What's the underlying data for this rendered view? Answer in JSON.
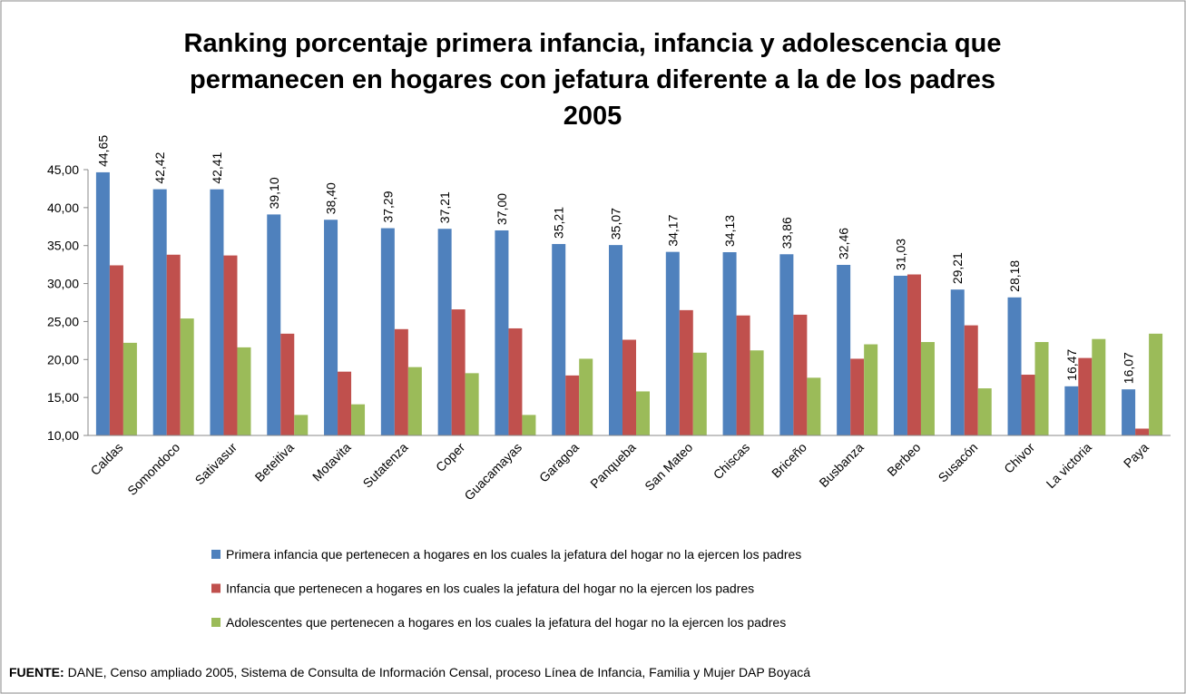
{
  "chart_data": {
    "type": "bar",
    "title_lines": [
      "Ranking  porcentaje primera infancia, infancia y adolescencia  que",
      "permanecen en hogares con jefatura diferente a la de los padres",
      "2005"
    ],
    "categories": [
      "Caldas",
      "Somondoco",
      "Sativasur",
      "Beteitiva",
      "Motavita",
      "Sutatenza",
      "Coper",
      "Guacamayas",
      "Garagoa",
      "Panqueba",
      "San Mateo",
      "Chiscas",
      "Briceño",
      "Busbanza",
      "Berbeo",
      "Susacón",
      "Chivor",
      "La victoria",
      "Paya"
    ],
    "series": [
      {
        "name": "Primera infancia que pertenecen a hogares en los cuales la jefatura del hogar no la ejercen los padres",
        "color": "#4f81bd",
        "values": [
          44.65,
          42.42,
          42.41,
          39.1,
          38.4,
          37.29,
          37.21,
          37.0,
          35.21,
          35.07,
          34.17,
          34.13,
          33.86,
          32.46,
          31.03,
          29.21,
          28.18,
          16.47,
          16.07
        ],
        "value_labels": [
          "44,65",
          "42,42",
          "42,41",
          "39,10",
          "38,40",
          "37,29",
          "37,21",
          "37,00",
          "35,21",
          "35,07",
          "34,17",
          "34,13",
          "33,86",
          "32,46",
          "31,03",
          "29,21",
          "28,18",
          "16,47",
          "16,07"
        ]
      },
      {
        "name": "Infancia que pertenecen a hogares en los cuales la jefatura del hogar no la ejercen los padres",
        "color": "#c0504d",
        "values": [
          32.4,
          33.8,
          33.7,
          23.4,
          18.4,
          24.0,
          26.6,
          24.1,
          17.9,
          22.6,
          26.5,
          25.8,
          25.9,
          20.1,
          31.2,
          24.5,
          18.0,
          20.2,
          10.9
        ]
      },
      {
        "name": "Adolescentes que pertenecen a hogares en los cuales la jefatura del hogar no la ejercen los padres",
        "color": "#9bbb59",
        "values": [
          22.2,
          25.4,
          21.6,
          12.7,
          14.1,
          19.0,
          18.2,
          12.7,
          20.1,
          15.8,
          20.9,
          21.2,
          17.6,
          22.0,
          22.3,
          16.2,
          22.3,
          22.7,
          23.4
        ]
      }
    ],
    "ylim": [
      10,
      45
    ],
    "yticks": [
      {
        "value": 10,
        "label": "10,00"
      },
      {
        "value": 15,
        "label": "15,00"
      },
      {
        "value": 20,
        "label": "20,00"
      },
      {
        "value": 25,
        "label": "25,00"
      },
      {
        "value": 30,
        "label": "30,00"
      },
      {
        "value": 35,
        "label": "35,00"
      },
      {
        "value": 40,
        "label": "40,00"
      },
      {
        "value": 45,
        "label": "45,00"
      }
    ],
    "grid": false,
    "source_label": "FUENTE:",
    "source": "DANE, Censo ampliado 2005, Sistema de Consulta de Información Censal, proceso Línea de Infancia, Familia y Mujer DAP Boyacá"
  }
}
